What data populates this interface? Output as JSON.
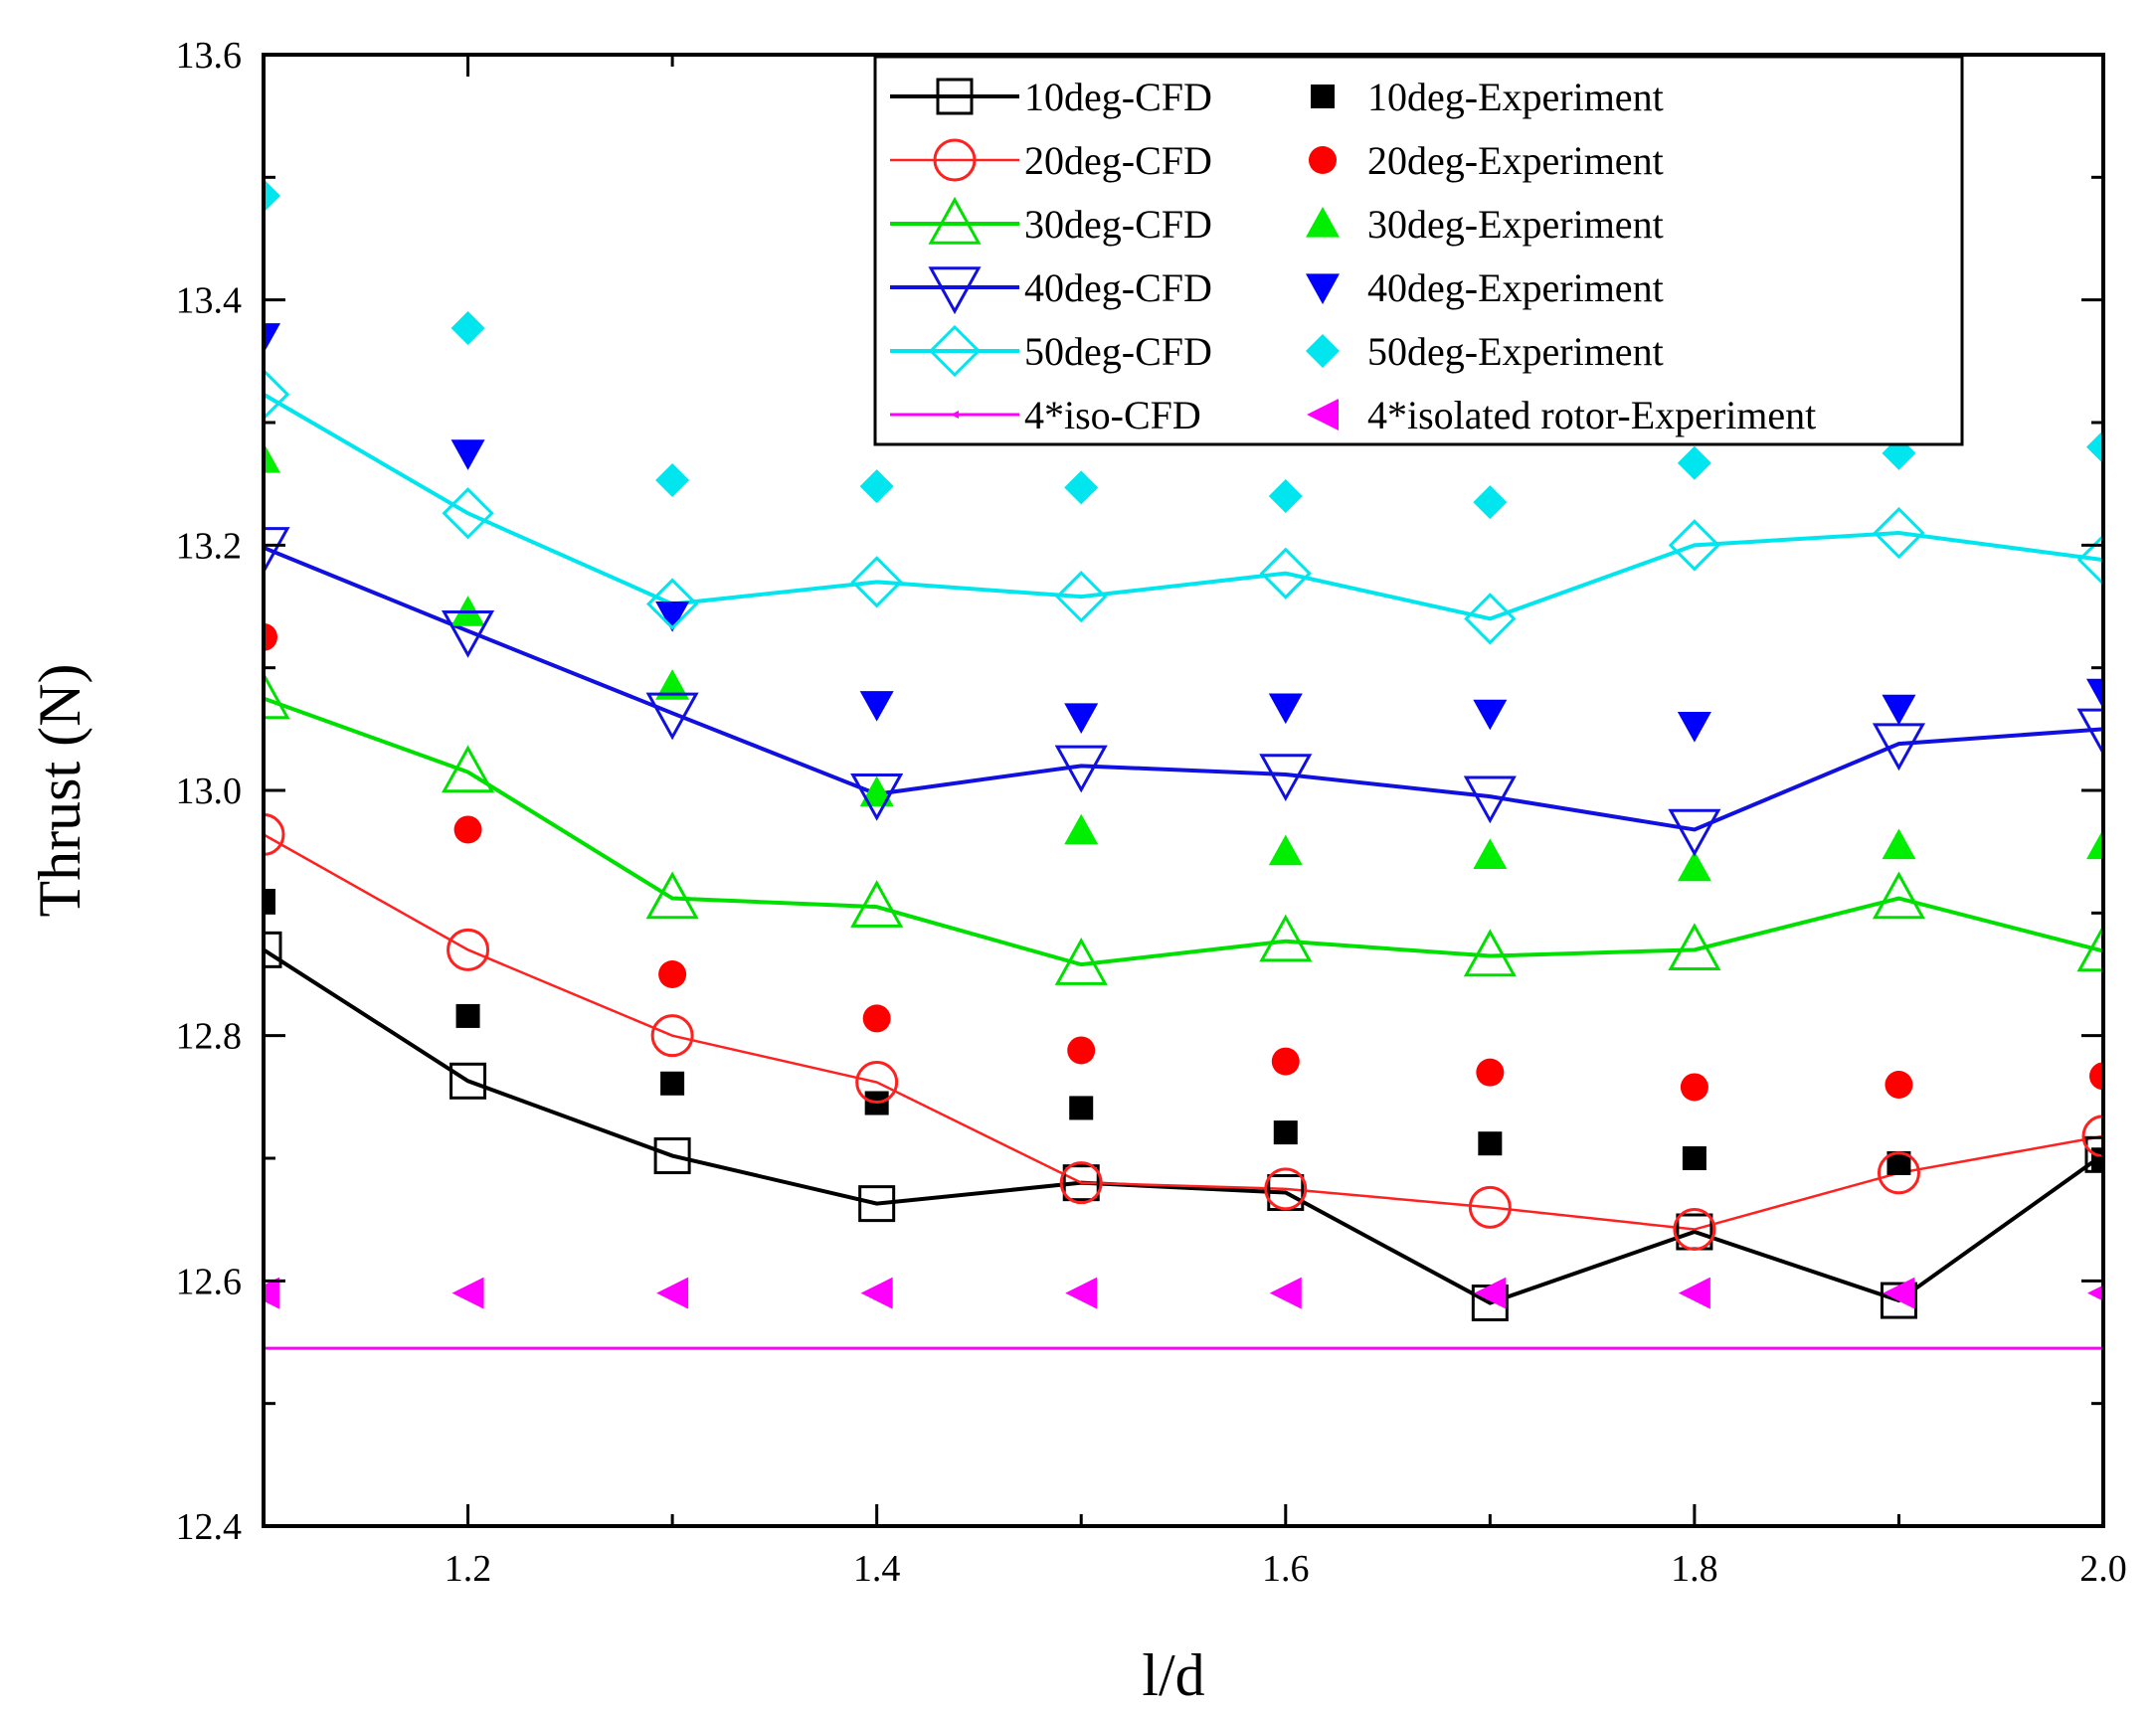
{
  "chart_data": {
    "type": "line",
    "title": "",
    "xlabel": "l/d",
    "ylabel": "Thrust (N)",
    "xlim": [
      1.1,
      2.0
    ],
    "ylim": [
      12.4,
      13.6
    ],
    "x": [
      1.1,
      1.2,
      1.3,
      1.4,
      1.5,
      1.6,
      1.7,
      1.8,
      1.9,
      2.0
    ],
    "xticks": [
      "1.2",
      "1.4",
      "1.6",
      "1.8",
      "2.0"
    ],
    "yticks": [
      "12.4",
      "12.6",
      "12.8",
      "13.0",
      "13.2",
      "13.4",
      "13.6"
    ],
    "grid": false,
    "legend_position": "top-right",
    "series": [
      {
        "name": "10deg-CFD",
        "kind": "cfd",
        "color": "#000000",
        "marker": "square-open",
        "values": [
          12.87,
          12.763,
          12.702,
          12.663,
          12.68,
          12.672,
          12.582,
          12.64,
          12.584,
          12.703
        ]
      },
      {
        "name": "10deg-Experiment",
        "kind": "exp",
        "color": "#000000",
        "marker": "square",
        "values": [
          12.91,
          12.816,
          12.761,
          12.745,
          12.741,
          12.721,
          12.712,
          12.7,
          12.696,
          12.699
        ]
      },
      {
        "name": "20deg-CFD",
        "kind": "cfd",
        "color": "#ff2020",
        "marker": "circle-open",
        "values": [
          12.964,
          12.87,
          12.8,
          12.762,
          12.68,
          12.675,
          12.66,
          12.642,
          12.688,
          12.718
        ]
      },
      {
        "name": "20deg-Experiment",
        "kind": "exp",
        "color": "#ff0000",
        "marker": "circle",
        "values": [
          13.125,
          12.968,
          12.85,
          12.814,
          12.788,
          12.779,
          12.77,
          12.758,
          12.76,
          12.767
        ]
      },
      {
        "name": "30deg-CFD",
        "kind": "cfd",
        "color": "#00e000",
        "marker": "triangle-up-open",
        "values": [
          13.075,
          13.015,
          12.912,
          12.905,
          12.858,
          12.877,
          12.865,
          12.87,
          12.912,
          12.869
        ]
      },
      {
        "name": "30deg-Experiment",
        "kind": "exp",
        "color": "#00ee00",
        "marker": "triangle-up",
        "values": [
          13.27,
          13.145,
          13.085,
          12.998,
          12.967,
          12.95,
          12.947,
          12.937,
          12.955,
          12.955
        ]
      },
      {
        "name": "40deg-CFD",
        "kind": "cfd",
        "color": "#1010e0",
        "marker": "triangle-down-open",
        "values": [
          13.198,
          13.13,
          13.063,
          12.997,
          13.02,
          13.013,
          12.995,
          12.968,
          13.038,
          13.05
        ]
      },
      {
        "name": "40deg-Experiment",
        "kind": "exp",
        "color": "#0000ff",
        "marker": "triangle-down",
        "values": [
          13.37,
          13.275,
          13.143,
          13.07,
          13.06,
          13.068,
          13.063,
          13.053,
          13.067,
          13.08
        ]
      },
      {
        "name": "50deg-CFD",
        "kind": "cfd",
        "color": "#00e5ee",
        "marker": "diamond-open",
        "values": [
          13.323,
          13.226,
          13.152,
          13.17,
          13.158,
          13.177,
          13.14,
          13.2,
          13.21,
          13.188
        ]
      },
      {
        "name": "50deg-Experiment",
        "kind": "exp",
        "color": "#00e5ee",
        "marker": "diamond",
        "values": [
          13.485,
          13.377,
          13.253,
          13.248,
          13.247,
          13.24,
          13.235,
          13.267,
          13.275,
          13.28
        ]
      },
      {
        "name": "4*iso-CFD",
        "kind": "cfd",
        "color": "#ff00ff",
        "marker": "none",
        "values": [
          12.545,
          12.545,
          12.545,
          12.545,
          12.545,
          12.545,
          12.545,
          12.545,
          12.545,
          12.545
        ]
      },
      {
        "name": "4*isolated rotor-Experiment",
        "kind": "exp",
        "color": "#ff00ff",
        "marker": "triangle-left",
        "values": [
          12.59,
          12.59,
          12.59,
          12.59,
          12.59,
          12.59,
          12.59,
          12.59,
          12.59,
          12.59
        ]
      }
    ],
    "legend_rows": [
      {
        "left": "10deg-CFD",
        "right": "10deg-Experiment"
      },
      {
        "left": "20deg-CFD",
        "right": "20deg-Experiment"
      },
      {
        "left": "30deg-CFD",
        "right": "30deg-Experiment"
      },
      {
        "left": "40deg-CFD",
        "right": "40deg-Experiment"
      },
      {
        "left": "50deg-CFD",
        "right": "50deg-Experiment"
      },
      {
        "left": "4*iso-CFD",
        "right": "4*isolated rotor-Experiment"
      }
    ]
  }
}
